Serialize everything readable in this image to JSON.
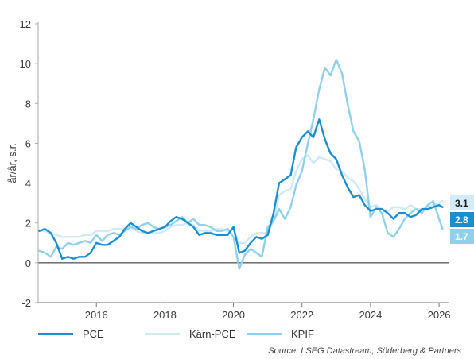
{
  "chart_data": {
    "type": "line",
    "ylabel": "år/år, s.r.",
    "xlabel": "",
    "ylim": [
      -2,
      12
    ],
    "xlim": [
      2014.3,
      2026.3
    ],
    "yticks": [
      "12",
      "10",
      "8",
      "6",
      "4",
      "2",
      "0",
      "-2"
    ],
    "xticks": [
      "2016",
      "2018",
      "2020",
      "2022",
      "2024",
      "2026"
    ],
    "grid": false,
    "legend_position": "bottom",
    "source": "Source: LSEG Datastream, Söderberg & Partners",
    "series": [
      {
        "name": "PCE",
        "color": "#1a8fcf",
        "end_label": "2.8",
        "end_label_color": "#1a8fcf",
        "end_label_text_color": "#ffffff",
        "x": [
          2014.33,
          2014.5,
          2014.67,
          2014.83,
          2015.0,
          2015.17,
          2015.33,
          2015.5,
          2015.67,
          2015.83,
          2016.0,
          2016.17,
          2016.33,
          2016.5,
          2016.67,
          2016.83,
          2017.0,
          2017.17,
          2017.33,
          2017.5,
          2017.67,
          2017.83,
          2018.0,
          2018.17,
          2018.33,
          2018.5,
          2018.67,
          2018.83,
          2019.0,
          2019.17,
          2019.33,
          2019.5,
          2019.67,
          2019.83,
          2020.0,
          2020.17,
          2020.33,
          2020.5,
          2020.67,
          2020.83,
          2021.0,
          2021.17,
          2021.33,
          2021.5,
          2021.67,
          2021.83,
          2022.0,
          2022.17,
          2022.33,
          2022.5,
          2022.67,
          2022.83,
          2023.0,
          2023.17,
          2023.33,
          2023.5,
          2023.67,
          2023.83,
          2024.0,
          2024.17,
          2024.33,
          2024.5,
          2024.67,
          2024.83,
          2025.0,
          2025.17,
          2025.33,
          2025.5,
          2025.67,
          2025.83,
          2026.0,
          2026.1
        ],
        "y": [
          1.6,
          1.7,
          1.5,
          1.0,
          0.2,
          0.3,
          0.2,
          0.3,
          0.3,
          0.5,
          1.0,
          0.9,
          0.9,
          1.1,
          1.3,
          1.7,
          2.0,
          1.8,
          1.6,
          1.5,
          1.6,
          1.7,
          1.8,
          2.1,
          2.3,
          2.2,
          2.0,
          1.8,
          1.4,
          1.5,
          1.5,
          1.4,
          1.4,
          1.4,
          1.8,
          0.5,
          0.6,
          1.0,
          1.3,
          1.2,
          1.4,
          2.5,
          4.0,
          4.2,
          4.4,
          5.8,
          6.3,
          6.6,
          6.3,
          7.2,
          6.2,
          5.5,
          5.2,
          4.4,
          3.8,
          3.3,
          3.4,
          2.9,
          2.6,
          2.7,
          2.7,
          2.5,
          2.2,
          2.5,
          2.5,
          2.3,
          2.4,
          2.7,
          2.7,
          2.8,
          2.9,
          2.8
        ]
      },
      {
        "name": "Kärn-PCE",
        "color": "#cfe9f7",
        "end_label": "3.1",
        "end_label_color": "#d4ecf9",
        "end_label_text_color": "#1a1a1a",
        "x": [
          2014.33,
          2014.5,
          2014.67,
          2014.83,
          2015.0,
          2015.17,
          2015.33,
          2015.5,
          2015.67,
          2015.83,
          2016.0,
          2016.17,
          2016.33,
          2016.5,
          2016.67,
          2016.83,
          2017.0,
          2017.17,
          2017.33,
          2017.5,
          2017.67,
          2017.83,
          2018.0,
          2018.17,
          2018.33,
          2018.5,
          2018.67,
          2018.83,
          2019.0,
          2019.17,
          2019.33,
          2019.5,
          2019.67,
          2019.83,
          2020.0,
          2020.17,
          2020.33,
          2020.5,
          2020.67,
          2020.83,
          2021.0,
          2021.17,
          2021.33,
          2021.5,
          2021.67,
          2021.83,
          2022.0,
          2022.17,
          2022.33,
          2022.5,
          2022.67,
          2022.83,
          2023.0,
          2023.17,
          2023.33,
          2023.5,
          2023.67,
          2023.83,
          2024.0,
          2024.17,
          2024.33,
          2024.5,
          2024.67,
          2024.83,
          2025.0,
          2025.17,
          2025.33,
          2025.5,
          2025.67,
          2025.83,
          2026.0,
          2026.1
        ],
        "y": [
          1.6,
          1.6,
          1.5,
          1.4,
          1.3,
          1.3,
          1.3,
          1.3,
          1.4,
          1.4,
          1.6,
          1.6,
          1.6,
          1.7,
          1.7,
          1.7,
          1.8,
          1.6,
          1.5,
          1.5,
          1.5,
          1.5,
          1.6,
          1.8,
          1.9,
          1.9,
          2.0,
          1.9,
          1.6,
          1.6,
          1.6,
          1.7,
          1.7,
          1.6,
          1.7,
          1.0,
          1.0,
          1.3,
          1.5,
          1.5,
          1.5,
          2.1,
          3.4,
          3.6,
          3.7,
          4.6,
          5.2,
          5.4,
          5.0,
          5.3,
          5.2,
          5.1,
          4.7,
          4.6,
          4.3,
          4.1,
          3.7,
          3.2,
          2.8,
          2.9,
          2.7,
          2.6,
          2.8,
          2.8,
          2.7,
          2.9,
          2.7,
          2.7,
          2.8,
          2.9,
          3.0,
          3.1
        ]
      },
      {
        "name": "KPIF",
        "color": "#8fd0ec",
        "end_label": "1.7",
        "end_label_color": "#8fd0ec",
        "end_label_text_color": "#ffffff",
        "x": [
          2014.33,
          2014.5,
          2014.67,
          2014.83,
          2015.0,
          2015.17,
          2015.33,
          2015.5,
          2015.67,
          2015.83,
          2016.0,
          2016.17,
          2016.33,
          2016.5,
          2016.67,
          2016.83,
          2017.0,
          2017.17,
          2017.33,
          2017.5,
          2017.67,
          2017.83,
          2018.0,
          2018.17,
          2018.33,
          2018.5,
          2018.67,
          2018.83,
          2019.0,
          2019.17,
          2019.33,
          2019.5,
          2019.67,
          2019.83,
          2020.0,
          2020.17,
          2020.33,
          2020.5,
          2020.67,
          2020.83,
          2021.0,
          2021.17,
          2021.33,
          2021.5,
          2021.67,
          2021.83,
          2022.0,
          2022.17,
          2022.33,
          2022.5,
          2022.67,
          2022.83,
          2023.0,
          2023.17,
          2023.33,
          2023.5,
          2023.67,
          2023.83,
          2024.0,
          2024.17,
          2024.33,
          2024.5,
          2024.67,
          2024.83,
          2025.0,
          2025.17,
          2025.33,
          2025.5,
          2025.67,
          2025.83,
          2026.0,
          2026.1
        ],
        "y": [
          0.6,
          0.5,
          0.3,
          0.8,
          0.7,
          1.0,
          0.9,
          1.0,
          1.1,
          1.0,
          1.4,
          1.1,
          1.4,
          1.5,
          1.4,
          1.6,
          1.8,
          1.7,
          1.9,
          2.0,
          1.8,
          1.7,
          1.8,
          1.9,
          2.1,
          2.3,
          2.0,
          2.2,
          1.9,
          1.9,
          1.8,
          1.6,
          1.6,
          1.7,
          1.3,
          -0.3,
          0.4,
          0.7,
          0.5,
          0.3,
          1.8,
          2.1,
          2.7,
          2.2,
          2.8,
          3.9,
          4.6,
          6.0,
          7.2,
          8.7,
          9.8,
          9.4,
          10.2,
          9.5,
          8.0,
          6.6,
          6.1,
          4.7,
          2.3,
          2.8,
          2.5,
          1.5,
          1.3,
          1.7,
          2.2,
          2.5,
          2.7,
          2.5,
          2.9,
          3.1,
          2.2,
          1.7
        ]
      }
    ]
  }
}
